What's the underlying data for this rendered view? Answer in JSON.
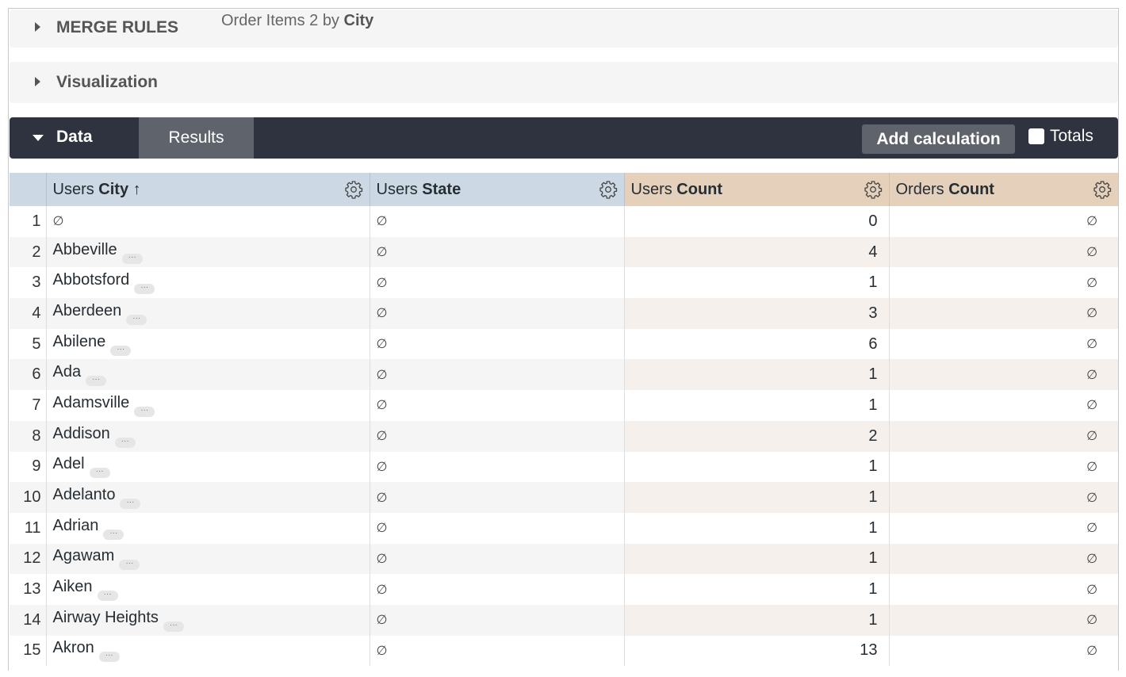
{
  "panels": {
    "merge_rules": "MERGE RULES",
    "merge_subtitle_prefix": "Order Items 2 by ",
    "merge_subtitle_bold": "City",
    "visualization": "Visualization"
  },
  "databar": {
    "data_tab": "Data",
    "results_tab": "Results",
    "add_calculation": "Add calculation",
    "totals_label": "Totals",
    "totals_checked": false
  },
  "colors": {
    "dimension_header": "#ccd9e4",
    "measure_header": "#e5d0bb",
    "toolbar": "#2e333f"
  },
  "columns": [
    {
      "prefix": "Users ",
      "bold": "City",
      "sort": "↑"
    },
    {
      "prefix": "Users ",
      "bold": "State"
    },
    {
      "prefix": "Users ",
      "bold": "Count"
    },
    {
      "prefix": "Orders ",
      "bold": "Count"
    }
  ],
  "null_symbol": "∅",
  "rows": [
    {
      "n": "1",
      "city": "∅",
      "state": "∅",
      "users": "0",
      "orders": "∅"
    },
    {
      "n": "2",
      "city": "Abbeville",
      "state": "∅",
      "users": "4",
      "orders": "∅"
    },
    {
      "n": "3",
      "city": "Abbotsford",
      "state": "∅",
      "users": "1",
      "orders": "∅"
    },
    {
      "n": "4",
      "city": "Aberdeen",
      "state": "∅",
      "users": "3",
      "orders": "∅"
    },
    {
      "n": "5",
      "city": "Abilene",
      "state": "∅",
      "users": "6",
      "orders": "∅"
    },
    {
      "n": "6",
      "city": "Ada",
      "state": "∅",
      "users": "1",
      "orders": "∅"
    },
    {
      "n": "7",
      "city": "Adamsville",
      "state": "∅",
      "users": "1",
      "orders": "∅"
    },
    {
      "n": "8",
      "city": "Addison",
      "state": "∅",
      "users": "2",
      "orders": "∅"
    },
    {
      "n": "9",
      "city": "Adel",
      "state": "∅",
      "users": "1",
      "orders": "∅"
    },
    {
      "n": "10",
      "city": "Adelanto",
      "state": "∅",
      "users": "1",
      "orders": "∅"
    },
    {
      "n": "11",
      "city": "Adrian",
      "state": "∅",
      "users": "1",
      "orders": "∅"
    },
    {
      "n": "12",
      "city": "Agawam",
      "state": "∅",
      "users": "1",
      "orders": "∅"
    },
    {
      "n": "13",
      "city": "Aiken",
      "state": "∅",
      "users": "1",
      "orders": "∅"
    },
    {
      "n": "14",
      "city": "Airway Heights",
      "state": "∅",
      "users": "1",
      "orders": "∅"
    },
    {
      "n": "15",
      "city": "Akron",
      "state": "∅",
      "users": "13",
      "orders": "∅"
    }
  ]
}
